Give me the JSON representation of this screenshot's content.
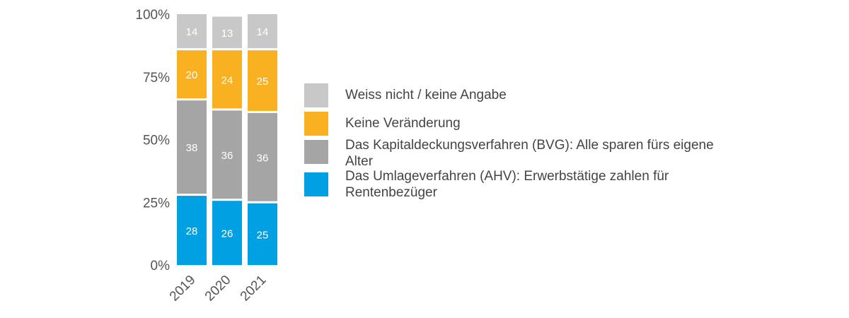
{
  "chart_data": {
    "type": "bar",
    "stacked": true,
    "categories": [
      "2019",
      "2020",
      "2021"
    ],
    "series": [
      {
        "name": "Das Umlageverfahren (AHV): Erwerbstätige zahlen für Rentenbezüger",
        "values": [
          28,
          26,
          25
        ],
        "color": "#00A0E3"
      },
      {
        "name": "Das Kapitaldeckungsverfahren (BVG): Alle sparen fürs eigene Alter",
        "values": [
          38,
          36,
          36
        ],
        "color": "#A5A5A5"
      },
      {
        "name": "Keine Veränderung",
        "values": [
          20,
          24,
          25
        ],
        "color": "#F9B122"
      },
      {
        "name": "Weiss nicht / keine Angabe",
        "values": [
          14,
          13,
          14
        ],
        "color": "#C8C8C8"
      }
    ],
    "y_ticks": [
      "0%",
      "25%",
      "50%",
      "75%",
      "100%"
    ],
    "ylim": [
      0,
      100
    ],
    "legend_position": "right",
    "grid": false
  },
  "legend": [
    {
      "label": "Weiss nicht / keine Angabe",
      "color": "#C8C8C8"
    },
    {
      "label": "Keine Veränderung",
      "color": "#F9B122"
    },
    {
      "label": "Das Kapitaldeckungsverfahren (BVG): Alle sparen fürs eigene Alter",
      "color": "#A5A5A5"
    },
    {
      "label": "Das Umlageverfahren (AHV): Erwerbstätige zahlen für Rentenbezüger",
      "color": "#00A0E3"
    }
  ]
}
